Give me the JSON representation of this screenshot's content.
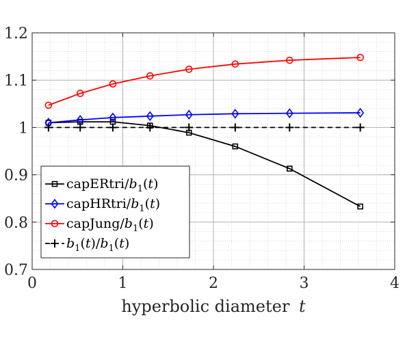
{
  "chart_data": {
    "type": "line",
    "title": "",
    "xlabel": "hyperbolic diameter",
    "xlabel_var": "t",
    "ylabel": "",
    "xlim": [
      0,
      4
    ],
    "ylim": [
      0.7,
      1.2
    ],
    "xticks": [
      0,
      1,
      2,
      3,
      4
    ],
    "xtick_labels": [
      "0",
      "1",
      "2",
      "3",
      "4"
    ],
    "yticks": [
      0.7,
      0.8,
      0.9,
      1.0,
      1.1,
      1.2
    ],
    "ytick_labels": [
      "0.7",
      "0.8",
      "0.9",
      "1",
      "1.1",
      "1.2"
    ],
    "grid": "major-and-minor",
    "legend_position": "lower-left",
    "x": [
      0.18,
      0.53,
      0.89,
      1.3,
      1.73,
      2.24,
      2.84,
      3.62
    ],
    "series": [
      {
        "name": "capERtri",
        "denominator": "b",
        "denominator_sub": "1",
        "denominator_arg": "(t)",
        "color": "#000000",
        "marker": "square",
        "linestyle": "solid",
        "values": [
          1.01,
          1.012,
          1.012,
          1.004,
          0.989,
          0.96,
          0.913,
          0.833
        ]
      },
      {
        "name": "capHRtri",
        "denominator": "b",
        "denominator_sub": "1",
        "denominator_arg": "(t)",
        "color": "#0000ff",
        "marker": "diamond",
        "linestyle": "solid",
        "values": [
          1.01,
          1.016,
          1.021,
          1.024,
          1.027,
          1.029,
          1.03,
          1.031
        ]
      },
      {
        "name": "capJung",
        "denominator": "b",
        "denominator_sub": "1",
        "denominator_arg": "(t)",
        "color": "#ff0000",
        "marker": "circle",
        "linestyle": "solid",
        "values": [
          1.047,
          1.072,
          1.092,
          1.109,
          1.123,
          1.134,
          1.142,
          1.148
        ]
      },
      {
        "name": "b1(t)/b1(t)",
        "prefix": "b",
        "prefix_sub": "1",
        "prefix_arg": "(t)",
        "denominator": "b",
        "denominator_sub": "1",
        "denominator_arg": "(t)",
        "color": "#000000",
        "marker": "plus",
        "linestyle": "dashed",
        "values": [
          1.0,
          1.0,
          1.0,
          1.0,
          1.0,
          1.0,
          1.0,
          1.0
        ]
      }
    ]
  }
}
